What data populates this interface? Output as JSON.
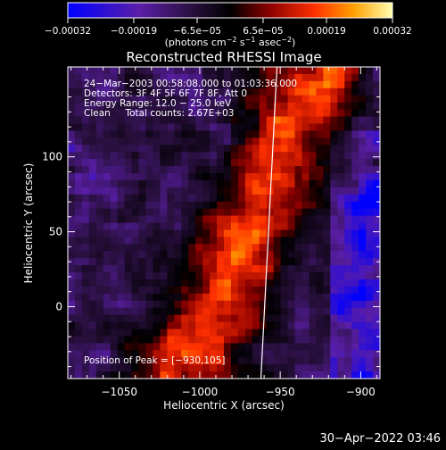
{
  "chart_data": {
    "type": "heatmap",
    "title": "Reconstructed RHESSI Image",
    "xlabel": "Heliocentric X (arcsec)",
    "ylabel": "Heliocentric Y (arcsec)",
    "xlim": [
      -1082,
      -888
    ],
    "ylim": [
      -48,
      160
    ],
    "x_ticks": [
      -1050,
      -1000,
      -950,
      -900
    ],
    "x_tick_labels": [
      "−1050",
      "−1000",
      "−950",
      "−900"
    ],
    "y_ticks": [
      0,
      50,
      100
    ],
    "y_tick_labels": [
      "0",
      "50",
      "100"
    ],
    "colorbar": {
      "min": -0.00032,
      "max": 0.00032,
      "ticks": [
        -0.00032,
        -0.00019,
        -6.5e-05,
        6.5e-05,
        0.00019,
        0.00032
      ],
      "tick_labels": [
        "−0.00032",
        "−0.00019",
        "−6.5e−05",
        "6.5e−05",
        "0.00019",
        "0.00032"
      ],
      "units_main": "(photons cm",
      "units_exp1": "−2",
      "units_mid": " s",
      "units_exp2": "−1",
      "units_end": " asec",
      "units_exp3": "−2",
      "units_close": ")",
      "colors": [
        "#0000ff",
        "#5a1ea8",
        "#2a1040",
        "#000000",
        "#8a0000",
        "#ff3000",
        "#ffa000",
        "#ffffb0"
      ]
    },
    "annotations": [
      "24−Mar−2003 00:58:08.000 to 01:03:36.000",
      "Detectors: 3F 4F 5F 6F 7F 8F, Att 0",
      "Energy Range: 12.0 − 25.0 keV",
      "Clean     Total counts: 2.67E+03"
    ],
    "peak_label": "Position of Peak = [−930,105]",
    "limb_line": [
      [
        -962,
        -48
      ],
      [
        -952,
        160
      ]
    ]
  },
  "footer": {
    "timestamp": "30−Apr−2022 03:46"
  }
}
